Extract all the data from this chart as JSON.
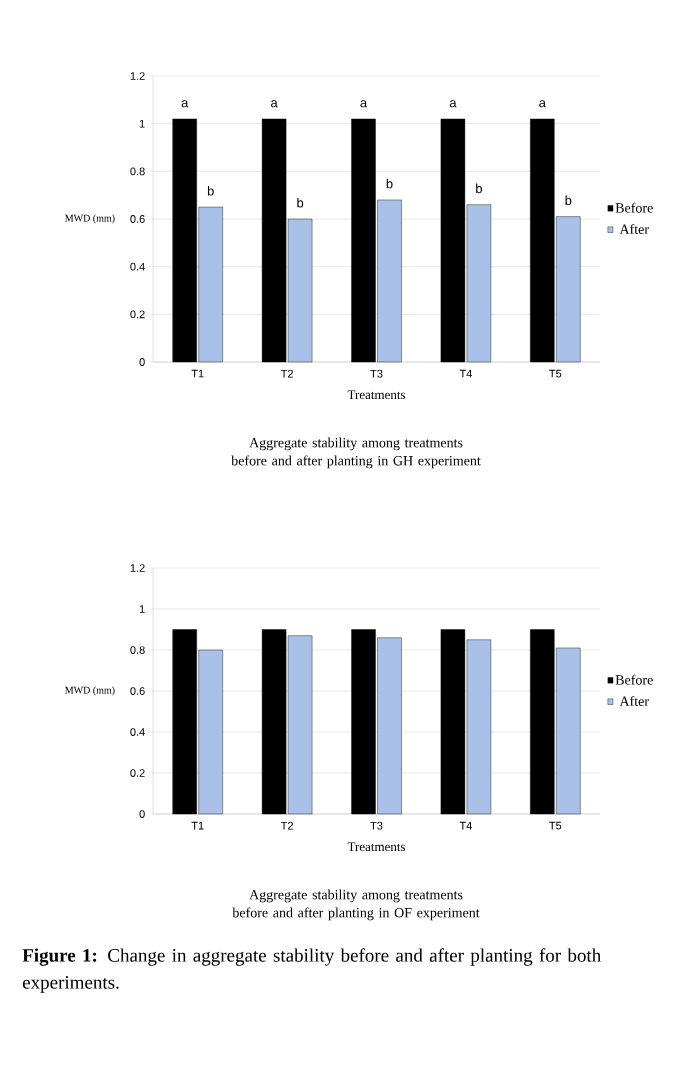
{
  "chart_data": [
    {
      "type": "bar",
      "categories": [
        "T1",
        "T2",
        "T3",
        "T4",
        "T5"
      ],
      "xlabel": "Treatments",
      "ylabel": "MWD (mm)",
      "ylim": [
        0,
        1.2
      ],
      "yticks": [
        0,
        0.2,
        0.4,
        0.6,
        0.8,
        1,
        1.2
      ],
      "grid": "y",
      "legend": "right",
      "series": [
        {
          "name": "Before",
          "color": "#000000",
          "values": [
            1.02,
            1.02,
            1.02,
            1.02,
            1.02
          ],
          "value_labels": [
            "a",
            "a",
            "a",
            "a",
            "a"
          ]
        },
        {
          "name": "After",
          "color": "#a9c0e8",
          "values": [
            0.65,
            0.6,
            0.68,
            0.66,
            0.61
          ],
          "value_labels": [
            "b",
            "b",
            "b",
            "b",
            "b"
          ]
        }
      ],
      "annotations": [
        "Aggregate stability among treatments before and after planting in GH experiment"
      ]
    },
    {
      "type": "bar",
      "categories": [
        "T1",
        "T2",
        "T3",
        "T4",
        "T5"
      ],
      "xlabel": "Treatments",
      "ylabel": "MWD (mm)",
      "ylim": [
        0,
        1.2
      ],
      "yticks": [
        0,
        0.2,
        0.4,
        0.6,
        0.8,
        1,
        1.2
      ],
      "grid": "y",
      "legend": "right",
      "series": [
        {
          "name": "Before",
          "color": "#000000",
          "values": [
            0.9,
            0.9,
            0.9,
            0.9,
            0.9
          ]
        },
        {
          "name": "After",
          "color": "#a9c0e8",
          "values": [
            0.8,
            0.87,
            0.86,
            0.85,
            0.81
          ]
        }
      ],
      "annotations": [
        "Aggregate stability among treatments before and after planting in OF experiment",
        "**Figure 1:** Change in aggregate stability before and after planting for both experiments."
      ]
    }
  ]
}
